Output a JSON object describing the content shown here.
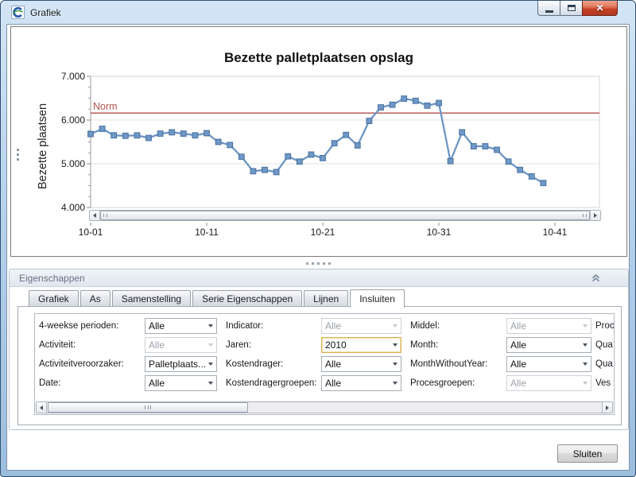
{
  "window": {
    "title": "Grafiek"
  },
  "chart_data": {
    "type": "line",
    "title": "Bezette palletplaatsen opslag",
    "ylabel": "Bezette plaatsen",
    "ylim": [
      4000,
      7000
    ],
    "yticks": [
      4000,
      5000,
      6000,
      7000
    ],
    "ytick_labels": [
      "4.000",
      "5.000",
      "6.000",
      "7.000"
    ],
    "yminor_step": 250,
    "xticks": [
      1,
      11,
      21,
      31,
      41
    ],
    "xtick_labels": [
      "10-01",
      "10-11",
      "10-21",
      "10-31",
      "10-41"
    ],
    "grid": "horizontal",
    "legend": "none",
    "norm_line": {
      "label": "Norm",
      "value": 6160,
      "color": "#b0504b"
    },
    "series": [
      {
        "name": "Bezette plaatsen",
        "color": "#6c95c5",
        "marker": "square",
        "marker_fill": "#6f98c6",
        "marker_stroke": "#47719f",
        "x_start": 1,
        "values": [
          5680,
          5800,
          5650,
          5640,
          5650,
          5590,
          5690,
          5720,
          5690,
          5650,
          5700,
          5500,
          5430,
          5160,
          4830,
          4860,
          4810,
          5170,
          5050,
          5210,
          5130,
          5470,
          5660,
          5420,
          5980,
          6290,
          6350,
          6490,
          6440,
          6330,
          6390,
          5060,
          5720,
          5400,
          5400,
          5320,
          5050,
          4860,
          4710,
          4560
        ]
      }
    ]
  },
  "properties_panel": {
    "header": "Eigenschappen",
    "tabs": [
      {
        "label": "Grafiek",
        "active": false
      },
      {
        "label": "As",
        "active": false
      },
      {
        "label": "Samenstelling",
        "active": false
      },
      {
        "label": "Serie Eigenschappen",
        "active": false
      },
      {
        "label": "Lijnen",
        "active": false
      },
      {
        "label": "Insluiten",
        "active": true
      }
    ],
    "filters": {
      "columns": [
        {
          "fields": [
            {
              "label": "4-weekse perioden:",
              "value": "Alle",
              "enabled": true
            },
            {
              "label": "Activiteit:",
              "value": "Alle",
              "enabled": false
            },
            {
              "label": "Activiteitveroorzaker:",
              "value": "Palletplaats...",
              "enabled": true
            },
            {
              "label": "Date:",
              "value": "Alle",
              "enabled": true
            }
          ]
        },
        {
          "fields": [
            {
              "label": "Indicator:",
              "value": "Alle",
              "enabled": false
            },
            {
              "label": "Jaren:",
              "value": "2010",
              "enabled": true,
              "focused": true
            },
            {
              "label": "Kostendrager:",
              "value": "Alle",
              "enabled": true
            },
            {
              "label": "Kostendragergroepen:",
              "value": "Alle",
              "enabled": true
            }
          ]
        },
        {
          "fields": [
            {
              "label": "Middel:",
              "value": "Alle",
              "enabled": false
            },
            {
              "label": "Month:",
              "value": "Alle",
              "enabled": true
            },
            {
              "label": "MonthWithoutYear:",
              "value": "Alle",
              "enabled": true
            },
            {
              "label": "Procesgroepen:",
              "value": "Alle",
              "enabled": false
            }
          ]
        },
        {
          "fields": [
            {
              "label": "Proc"
            },
            {
              "label": "Qua"
            },
            {
              "label": "Qua"
            },
            {
              "label": "Ves"
            }
          ]
        }
      ]
    }
  },
  "footer": {
    "close_button": "Sluiten"
  }
}
